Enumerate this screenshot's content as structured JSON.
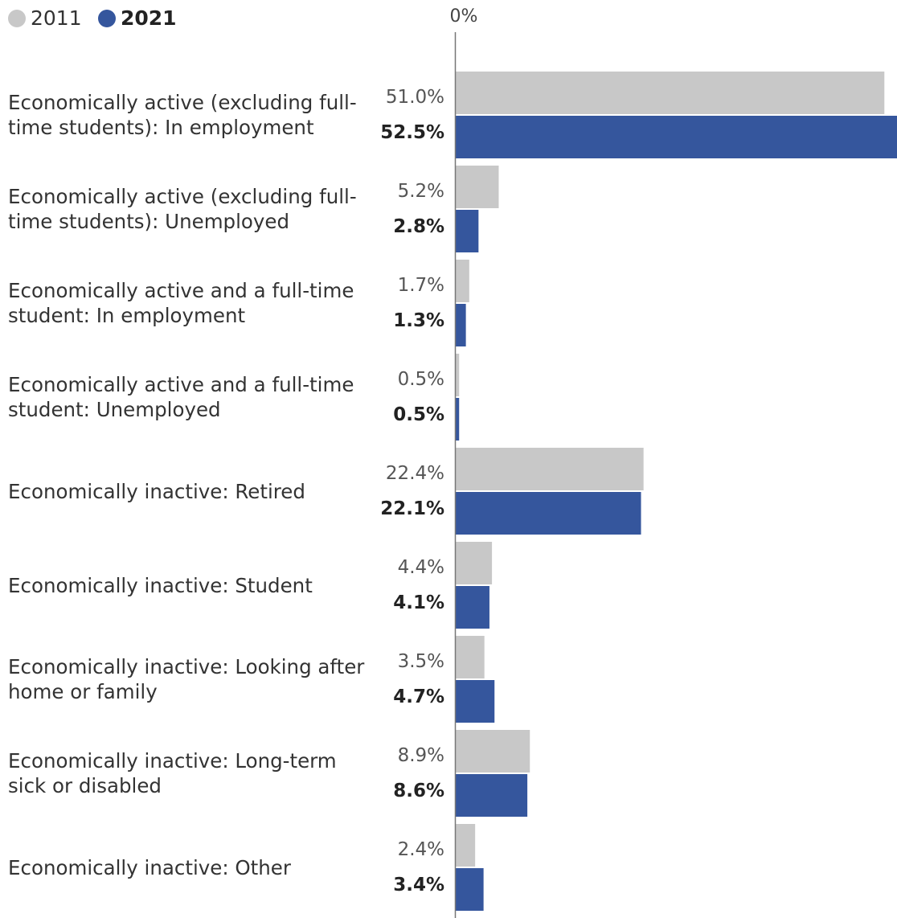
{
  "chart_data": {
    "type": "bar",
    "orientation": "horizontal",
    "categories": [
      "Economically active (excluding full-time students): In employment",
      "Economically active (excluding full-time students): Unemployed",
      "Economically active and a full-time student: In employment",
      "Economically active and a full-time student: Unemployed",
      "Economically inactive: Retired",
      "Economically inactive: Student",
      "Economically inactive: Looking after home or family",
      "Economically inactive: Long-term sick or disabled",
      "Economically inactive: Other"
    ],
    "series": [
      {
        "name": "2011",
        "color": "#c8c8c8",
        "values": [
          51.0,
          5.2,
          1.7,
          0.5,
          22.4,
          4.4,
          3.5,
          8.9,
          2.4
        ],
        "labels": [
          "51.0%",
          "5.2%",
          "1.7%",
          "0.5%",
          "22.4%",
          "4.4%",
          "3.5%",
          "8.9%",
          "2.4%"
        ]
      },
      {
        "name": "2021",
        "color": "#35569d",
        "values": [
          52.5,
          2.8,
          1.3,
          0.5,
          22.1,
          4.1,
          4.7,
          8.6,
          3.4
        ],
        "labels": [
          "52.5%",
          "2.8%",
          "1.3%",
          "0.5%",
          "22.1%",
          "4.1%",
          "4.7%",
          "8.6%",
          "3.4%"
        ]
      }
    ],
    "xlim": [
      0,
      52.5
    ],
    "axis_zero_label": "0%",
    "legend": "top-left"
  }
}
